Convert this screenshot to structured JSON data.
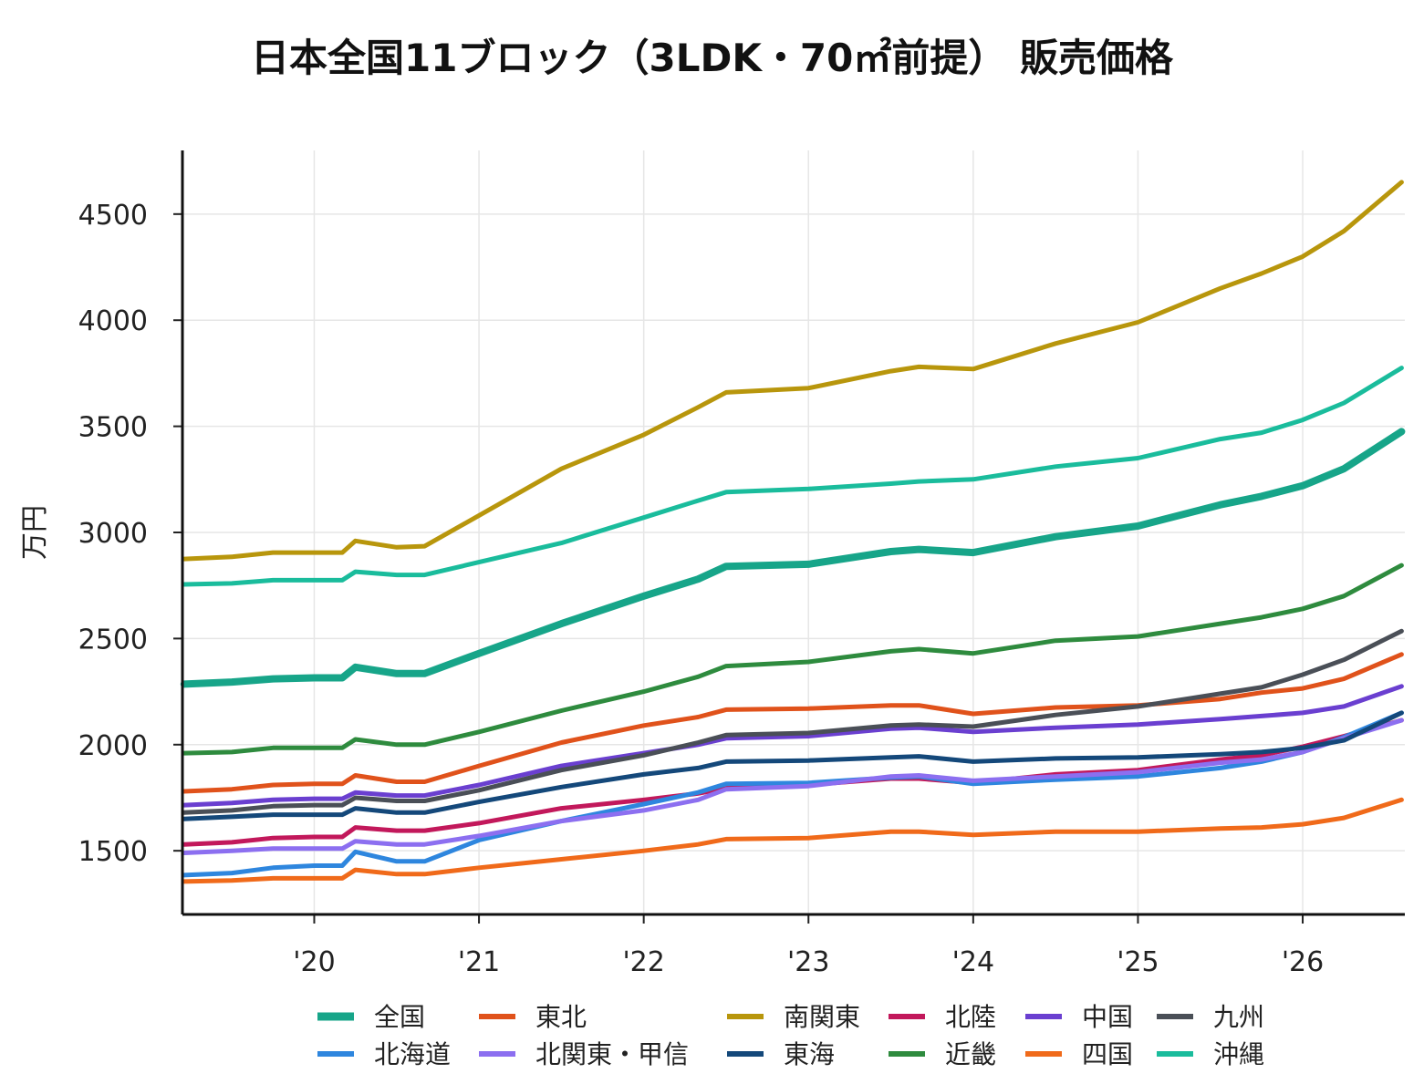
{
  "chart_data": {
    "type": "line",
    "title": "日本全国11ブロック（3LDK・70㎡前提） 販売価格",
    "ylabel": "万円",
    "xlabel": "",
    "xlim": [
      2019.2,
      2026.62
    ],
    "ylim": [
      1200,
      4800
    ],
    "yticks": [
      1500,
      2000,
      2500,
      3000,
      3500,
      4000,
      4500
    ],
    "xticks": [
      {
        "value": 2020,
        "label": "'20"
      },
      {
        "value": 2021,
        "label": "'21"
      },
      {
        "value": 2022,
        "label": "'22"
      },
      {
        "value": 2023,
        "label": "'23"
      },
      {
        "value": 2024,
        "label": "'24"
      },
      {
        "value": 2025,
        "label": "'25"
      },
      {
        "value": 2026,
        "label": "'26"
      }
    ],
    "grid": true,
    "legend_position": "bottom",
    "x": [
      2019.21,
      2019.5,
      2019.75,
      2020.0,
      2020.17,
      2020.25,
      2020.5,
      2020.67,
      2021.0,
      2021.5,
      2022.0,
      2022.33,
      2022.5,
      2023.0,
      2023.5,
      2023.67,
      2024.0,
      2024.5,
      2025.0,
      2025.5,
      2025.75,
      2026.0,
      2026.25,
      2026.6
    ],
    "series": [
      {
        "name": "全国",
        "color": "#17a589",
        "width": 8,
        "values": [
          2285,
          2295,
          2310,
          2315,
          2315,
          2365,
          2335,
          2335,
          2430,
          2570,
          2700,
          2780,
          2840,
          2850,
          2910,
          2920,
          2905,
          2980,
          3030,
          3130,
          3170,
          3220,
          3300,
          3475
        ]
      },
      {
        "name": "東北",
        "color": "#e0521b",
        "width": 5,
        "values": [
          1780,
          1790,
          1810,
          1815,
          1815,
          1855,
          1825,
          1825,
          1900,
          2010,
          2090,
          2130,
          2165,
          2170,
          2185,
          2185,
          2145,
          2175,
          2185,
          2215,
          2245,
          2265,
          2310,
          2425
        ]
      },
      {
        "name": "南関東",
        "color": "#b8960c",
        "width": 5,
        "values": [
          2875,
          2885,
          2905,
          2905,
          2905,
          2960,
          2930,
          2935,
          3080,
          3300,
          3460,
          3590,
          3660,
          3680,
          3760,
          3780,
          3770,
          3890,
          3990,
          4150,
          4220,
          4300,
          4420,
          4650
        ]
      },
      {
        "name": "北陸",
        "color": "#c2185b",
        "width": 5,
        "values": [
          1530,
          1540,
          1560,
          1565,
          1565,
          1610,
          1595,
          1595,
          1630,
          1700,
          1740,
          1770,
          1795,
          1810,
          1840,
          1840,
          1820,
          1860,
          1880,
          1930,
          1950,
          1990,
          2040,
          2115
        ]
      },
      {
        "name": "中国",
        "color": "#6a3fd0",
        "width": 5,
        "values": [
          1715,
          1725,
          1740,
          1745,
          1745,
          1775,
          1760,
          1760,
          1810,
          1900,
          1960,
          2000,
          2030,
          2040,
          2075,
          2080,
          2060,
          2080,
          2095,
          2120,
          2135,
          2150,
          2180,
          2275
        ]
      },
      {
        "name": "九州",
        "color": "#4a4f57",
        "width": 5,
        "values": [
          1680,
          1690,
          1710,
          1715,
          1715,
          1750,
          1735,
          1735,
          1785,
          1880,
          1950,
          2010,
          2045,
          2055,
          2090,
          2095,
          2085,
          2140,
          2180,
          2240,
          2270,
          2330,
          2400,
          2535
        ]
      },
      {
        "name": "北海道",
        "color": "#2e86de",
        "width": 5,
        "values": [
          1385,
          1395,
          1420,
          1430,
          1430,
          1495,
          1450,
          1450,
          1550,
          1640,
          1720,
          1775,
          1815,
          1820,
          1845,
          1850,
          1815,
          1835,
          1850,
          1890,
          1920,
          1965,
          2035,
          2150
        ]
      },
      {
        "name": "北関東・甲信",
        "color": "#8c6ff0",
        "width": 5,
        "values": [
          1490,
          1500,
          1510,
          1510,
          1510,
          1545,
          1530,
          1530,
          1570,
          1640,
          1690,
          1740,
          1790,
          1805,
          1850,
          1855,
          1830,
          1850,
          1870,
          1915,
          1930,
          1965,
          2030,
          2115
        ]
      },
      {
        "name": "東海",
        "color": "#14487a",
        "width": 5,
        "values": [
          1650,
          1660,
          1670,
          1670,
          1670,
          1700,
          1680,
          1680,
          1730,
          1800,
          1860,
          1890,
          1920,
          1925,
          1940,
          1945,
          1920,
          1935,
          1940,
          1955,
          1965,
          1985,
          2020,
          2150
        ]
      },
      {
        "name": "近畿",
        "color": "#2e8b3e",
        "width": 5,
        "values": [
          1960,
          1965,
          1985,
          1985,
          1985,
          2025,
          2000,
          2000,
          2060,
          2160,
          2250,
          2320,
          2370,
          2390,
          2440,
          2450,
          2430,
          2490,
          2510,
          2570,
          2600,
          2640,
          2700,
          2845
        ]
      },
      {
        "name": "四国",
        "color": "#f06a1a",
        "width": 5,
        "values": [
          1355,
          1360,
          1370,
          1370,
          1370,
          1410,
          1390,
          1390,
          1420,
          1460,
          1500,
          1530,
          1555,
          1560,
          1590,
          1590,
          1575,
          1590,
          1590,
          1605,
          1610,
          1625,
          1655,
          1740
        ]
      },
      {
        "name": "沖縄",
        "color": "#1abc9c",
        "width": 5,
        "values": [
          2755,
          2760,
          2775,
          2775,
          2775,
          2815,
          2800,
          2800,
          2860,
          2950,
          3070,
          3150,
          3190,
          3205,
          3230,
          3240,
          3250,
          3310,
          3350,
          3440,
          3470,
          3530,
          3610,
          3775
        ]
      }
    ]
  }
}
